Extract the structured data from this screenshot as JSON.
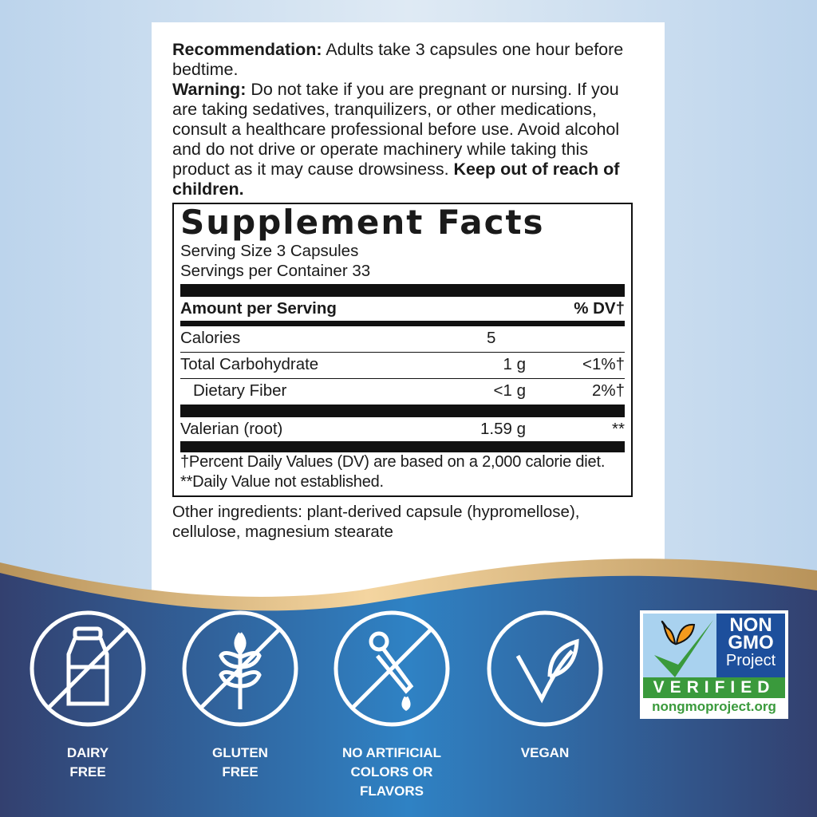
{
  "label": {
    "recommendation_heading": "Recommendation:",
    "recommendation_text": " Adults take 3 capsules one hour before bedtime.",
    "warning_heading": "Warning:",
    "warning_text": " Do not take if you are pregnant or nursing. If you are taking sedatives, tranquilizers, or other medications, consult a healthcare professional before use. Avoid alcohol and do not drive or operate machinery while taking this product as it may cause drowsiness. ",
    "warning_bold": "Keep out of reach of children."
  },
  "facts": {
    "title": "Supplement Facts",
    "serving_size": "Serving Size 3 Capsules",
    "servings_per_container": "Servings per Container 33",
    "amount_header": "Amount per Serving",
    "dv_header": "% DV†",
    "rows": [
      {
        "name": "Calories",
        "amount": "5",
        "dv": ""
      },
      {
        "name": "Total Carbohydrate",
        "amount": "1 g",
        "dv": "<1%†"
      },
      {
        "name": "Dietary Fiber",
        "amount": "<1 g",
        "dv": "2%†"
      },
      {
        "name": "Valerian (root)",
        "amount": "1.59 g",
        "dv": "**"
      }
    ],
    "footnote1": "†Percent Daily Values (DV) are based on a 2,000 calorie diet.",
    "footnote2": "**Daily Value not established."
  },
  "other_ingredients": "Other ingredients: plant-derived capsule (hypromellose), cellulose, magnesium stearate",
  "badges": [
    {
      "icon": "no-milk-bottle-icon",
      "line1": "DAIRY",
      "line2": "FREE",
      "line3": ""
    },
    {
      "icon": "no-wheat-icon",
      "line1": "GLUTEN",
      "line2": "FREE",
      "line3": ""
    },
    {
      "icon": "no-dropper-icon",
      "line1": "NO ARTIFICIAL",
      "line2": "COLORS OR",
      "line3": "FLAVORS"
    },
    {
      "icon": "leaf-icon",
      "line1": "VEGAN",
      "line2": "",
      "line3": ""
    }
  ],
  "nongmo": {
    "line1": "NON",
    "line2": "GMO",
    "line3": "Project",
    "verified": "VERIFIED",
    "url": "nongmoproject.org"
  },
  "colors": {
    "navy": "#33406f",
    "blue": "#2f7fc1",
    "gold": "#e8c48e",
    "green": "#3a9a3c",
    "nongmo_blue": "#1d4f9c"
  }
}
